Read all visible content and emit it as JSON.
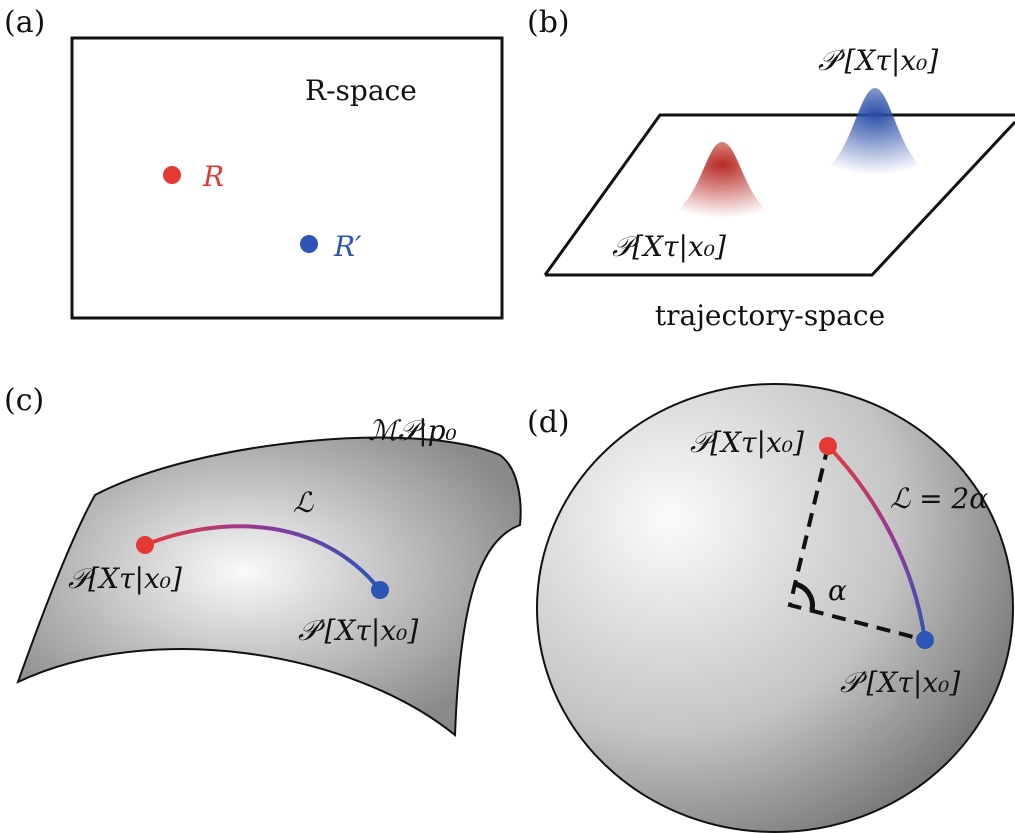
{
  "panel_a": {
    "label": "(a)",
    "space": "R-space",
    "point_1": "R",
    "point_2": "R′"
  },
  "panel_b": {
    "label": "(b)",
    "dist_prime": "𝒫′[Xτ|x₀]",
    "dist": "𝒫[Xτ|x₀]",
    "space": "trajectory-space"
  },
  "panel_c": {
    "label": "(c)",
    "manifold": "ℳ𝒫|p₀",
    "length": "ℒ",
    "dist": "𝒫[Xτ|x₀]",
    "dist_prime": "𝒫′[Xτ|x₀]"
  },
  "panel_d": {
    "label": "(d)",
    "dist": "𝒫[Xτ|x₀]",
    "length": "ℒ = 2α",
    "angle": "α",
    "dist_prime": "𝒫′[Xτ|x₀]"
  }
}
